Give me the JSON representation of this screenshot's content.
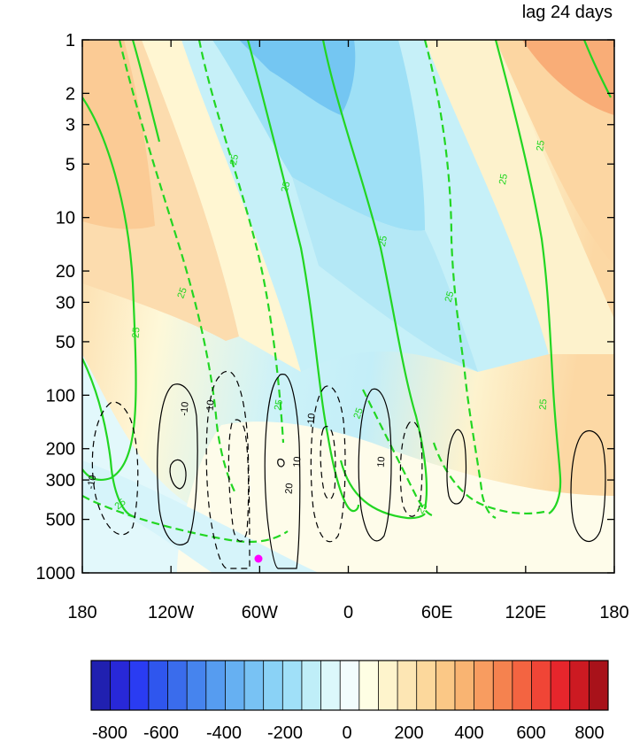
{
  "chart_data": {
    "type": "heatmap",
    "title": "lag 24 days",
    "x_ticks": [
      "180",
      "120W",
      "60W",
      "0",
      "60E",
      "120E",
      "180"
    ],
    "y_ticks": [
      "1",
      "2",
      "3",
      "5",
      "10",
      "20",
      "30",
      "50",
      "100",
      "200",
      "300",
      "500",
      "1000"
    ],
    "y_scale": "log",
    "y_reversed": true,
    "colorbar_labels": [
      "-800",
      "-600",
      "-400",
      "-200",
      "0",
      "200",
      "400",
      "600",
      "800"
    ],
    "colorbar_colors": [
      "#2020b0",
      "#2828d8",
      "#2a3cf2",
      "#2f56ee",
      "#3a6cec",
      "#4684ee",
      "#569cf0",
      "#66b0f2",
      "#78c2f4",
      "#8ad2f6",
      "#a0e0f8",
      "#bfeef8",
      "#dcf8fb",
      "#f2fdfd",
      "#fefee4",
      "#fef4cc",
      "#fde6b4",
      "#fcd89c",
      "#fbc886",
      "#f9b472",
      "#f89c60",
      "#f5824f",
      "#f36441",
      "#f04536",
      "#e6262c",
      "#cc1a22",
      "#a8121a"
    ],
    "contour_labels_green": [
      "25",
      "25",
      "25",
      "25",
      "25",
      "25",
      "25",
      "25",
      "25",
      "25",
      "25",
      "25",
      "25"
    ],
    "contour_labels_black": [
      "-10",
      "-10",
      "10",
      "-10",
      "10",
      "10",
      "20"
    ]
  }
}
